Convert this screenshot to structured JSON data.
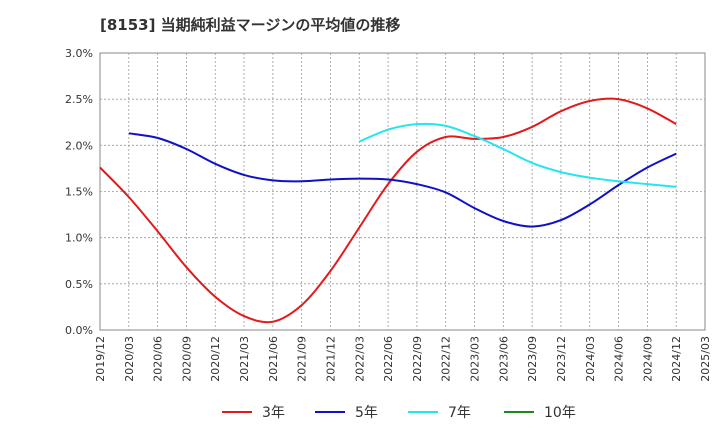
{
  "chart_data": {
    "type": "line",
    "title": "[8153]  当期純利益マージンの平均値の推移",
    "xlabel": "",
    "ylabel": "",
    "x": [
      "2019/12",
      "2020/03",
      "2020/06",
      "2020/09",
      "2020/12",
      "2021/03",
      "2021/06",
      "2021/09",
      "2021/12",
      "2022/03",
      "2022/06",
      "2022/09",
      "2022/12",
      "2023/03",
      "2023/06",
      "2023/09",
      "2023/12",
      "2024/03",
      "2024/06",
      "2024/09",
      "2024/12",
      "2025/03"
    ],
    "ylim": [
      0,
      3.0
    ],
    "y_ticks": [
      "0.0%",
      "0.5%",
      "1.0%",
      "1.5%",
      "2.0%",
      "2.5%",
      "3.0%"
    ],
    "grid": true,
    "legend_position": "bottom",
    "series": [
      {
        "name": "3年",
        "color": "#e31a1c",
        "values": [
          1.76,
          1.44,
          1.07,
          0.68,
          0.36,
          0.15,
          0.09,
          0.27,
          0.64,
          1.11,
          1.58,
          1.93,
          2.09,
          2.07,
          2.09,
          2.2,
          2.37,
          2.48,
          2.5,
          2.4,
          2.23,
          null
        ]
      },
      {
        "name": "5年",
        "color": "#1010c8",
        "values": [
          null,
          2.13,
          2.08,
          1.96,
          1.8,
          1.68,
          1.62,
          1.61,
          1.63,
          1.64,
          1.63,
          1.58,
          1.49,
          1.32,
          1.18,
          1.12,
          1.19,
          1.36,
          1.57,
          1.76,
          1.91,
          null
        ]
      },
      {
        "name": "7年",
        "color": "#22e5ef",
        "values": [
          null,
          null,
          null,
          null,
          null,
          null,
          null,
          null,
          null,
          2.04,
          2.17,
          2.23,
          2.21,
          2.1,
          1.96,
          1.81,
          1.71,
          1.65,
          1.61,
          1.58,
          1.55,
          null
        ]
      },
      {
        "name": "10年",
        "color": "#1a8a1a",
        "values": [
          null,
          null,
          null,
          null,
          null,
          null,
          null,
          null,
          null,
          null,
          null,
          null,
          null,
          null,
          null,
          null,
          null,
          null,
          null,
          null,
          null,
          null
        ]
      }
    ]
  }
}
